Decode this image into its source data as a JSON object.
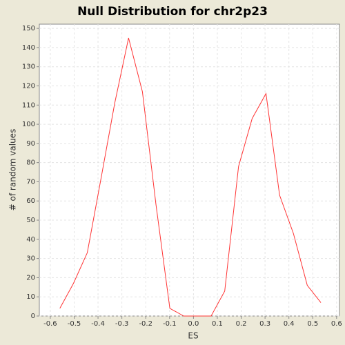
{
  "chart_data": {
    "type": "line",
    "title": "Null Distribution for chr2p23",
    "xlabel": "ES",
    "ylabel": "# of random values",
    "x": [
      -0.56,
      -0.503,
      -0.445,
      -0.387,
      -0.33,
      -0.272,
      -0.214,
      -0.157,
      -0.099,
      -0.041,
      0.016,
      0.074,
      0.131,
      0.189,
      0.246,
      0.304,
      0.361,
      0.419,
      0.477,
      0.534
    ],
    "series": [
      {
        "color": "#ff3333",
        "values": [
          4,
          17,
          33,
          72,
          111,
          145,
          117,
          58,
          4,
          0,
          0,
          0,
          13,
          78,
          103,
          116,
          63,
          43,
          16,
          7
        ]
      }
    ],
    "xlim": [
      -0.646,
      0.612
    ],
    "ylim": [
      0,
      152.2
    ],
    "xticks": [
      -0.6,
      -0.5,
      -0.4,
      -0.3,
      -0.2,
      -0.1,
      {
        "value": 0,
        "label": "0.0"
      },
      0.1,
      0.2,
      0.3,
      0.4,
      0.5,
      0.6
    ],
    "yticks": [
      0,
      10,
      20,
      30,
      40,
      50,
      60,
      70,
      80,
      90,
      100,
      110,
      120,
      130,
      140,
      150
    ],
    "grid": true
  }
}
